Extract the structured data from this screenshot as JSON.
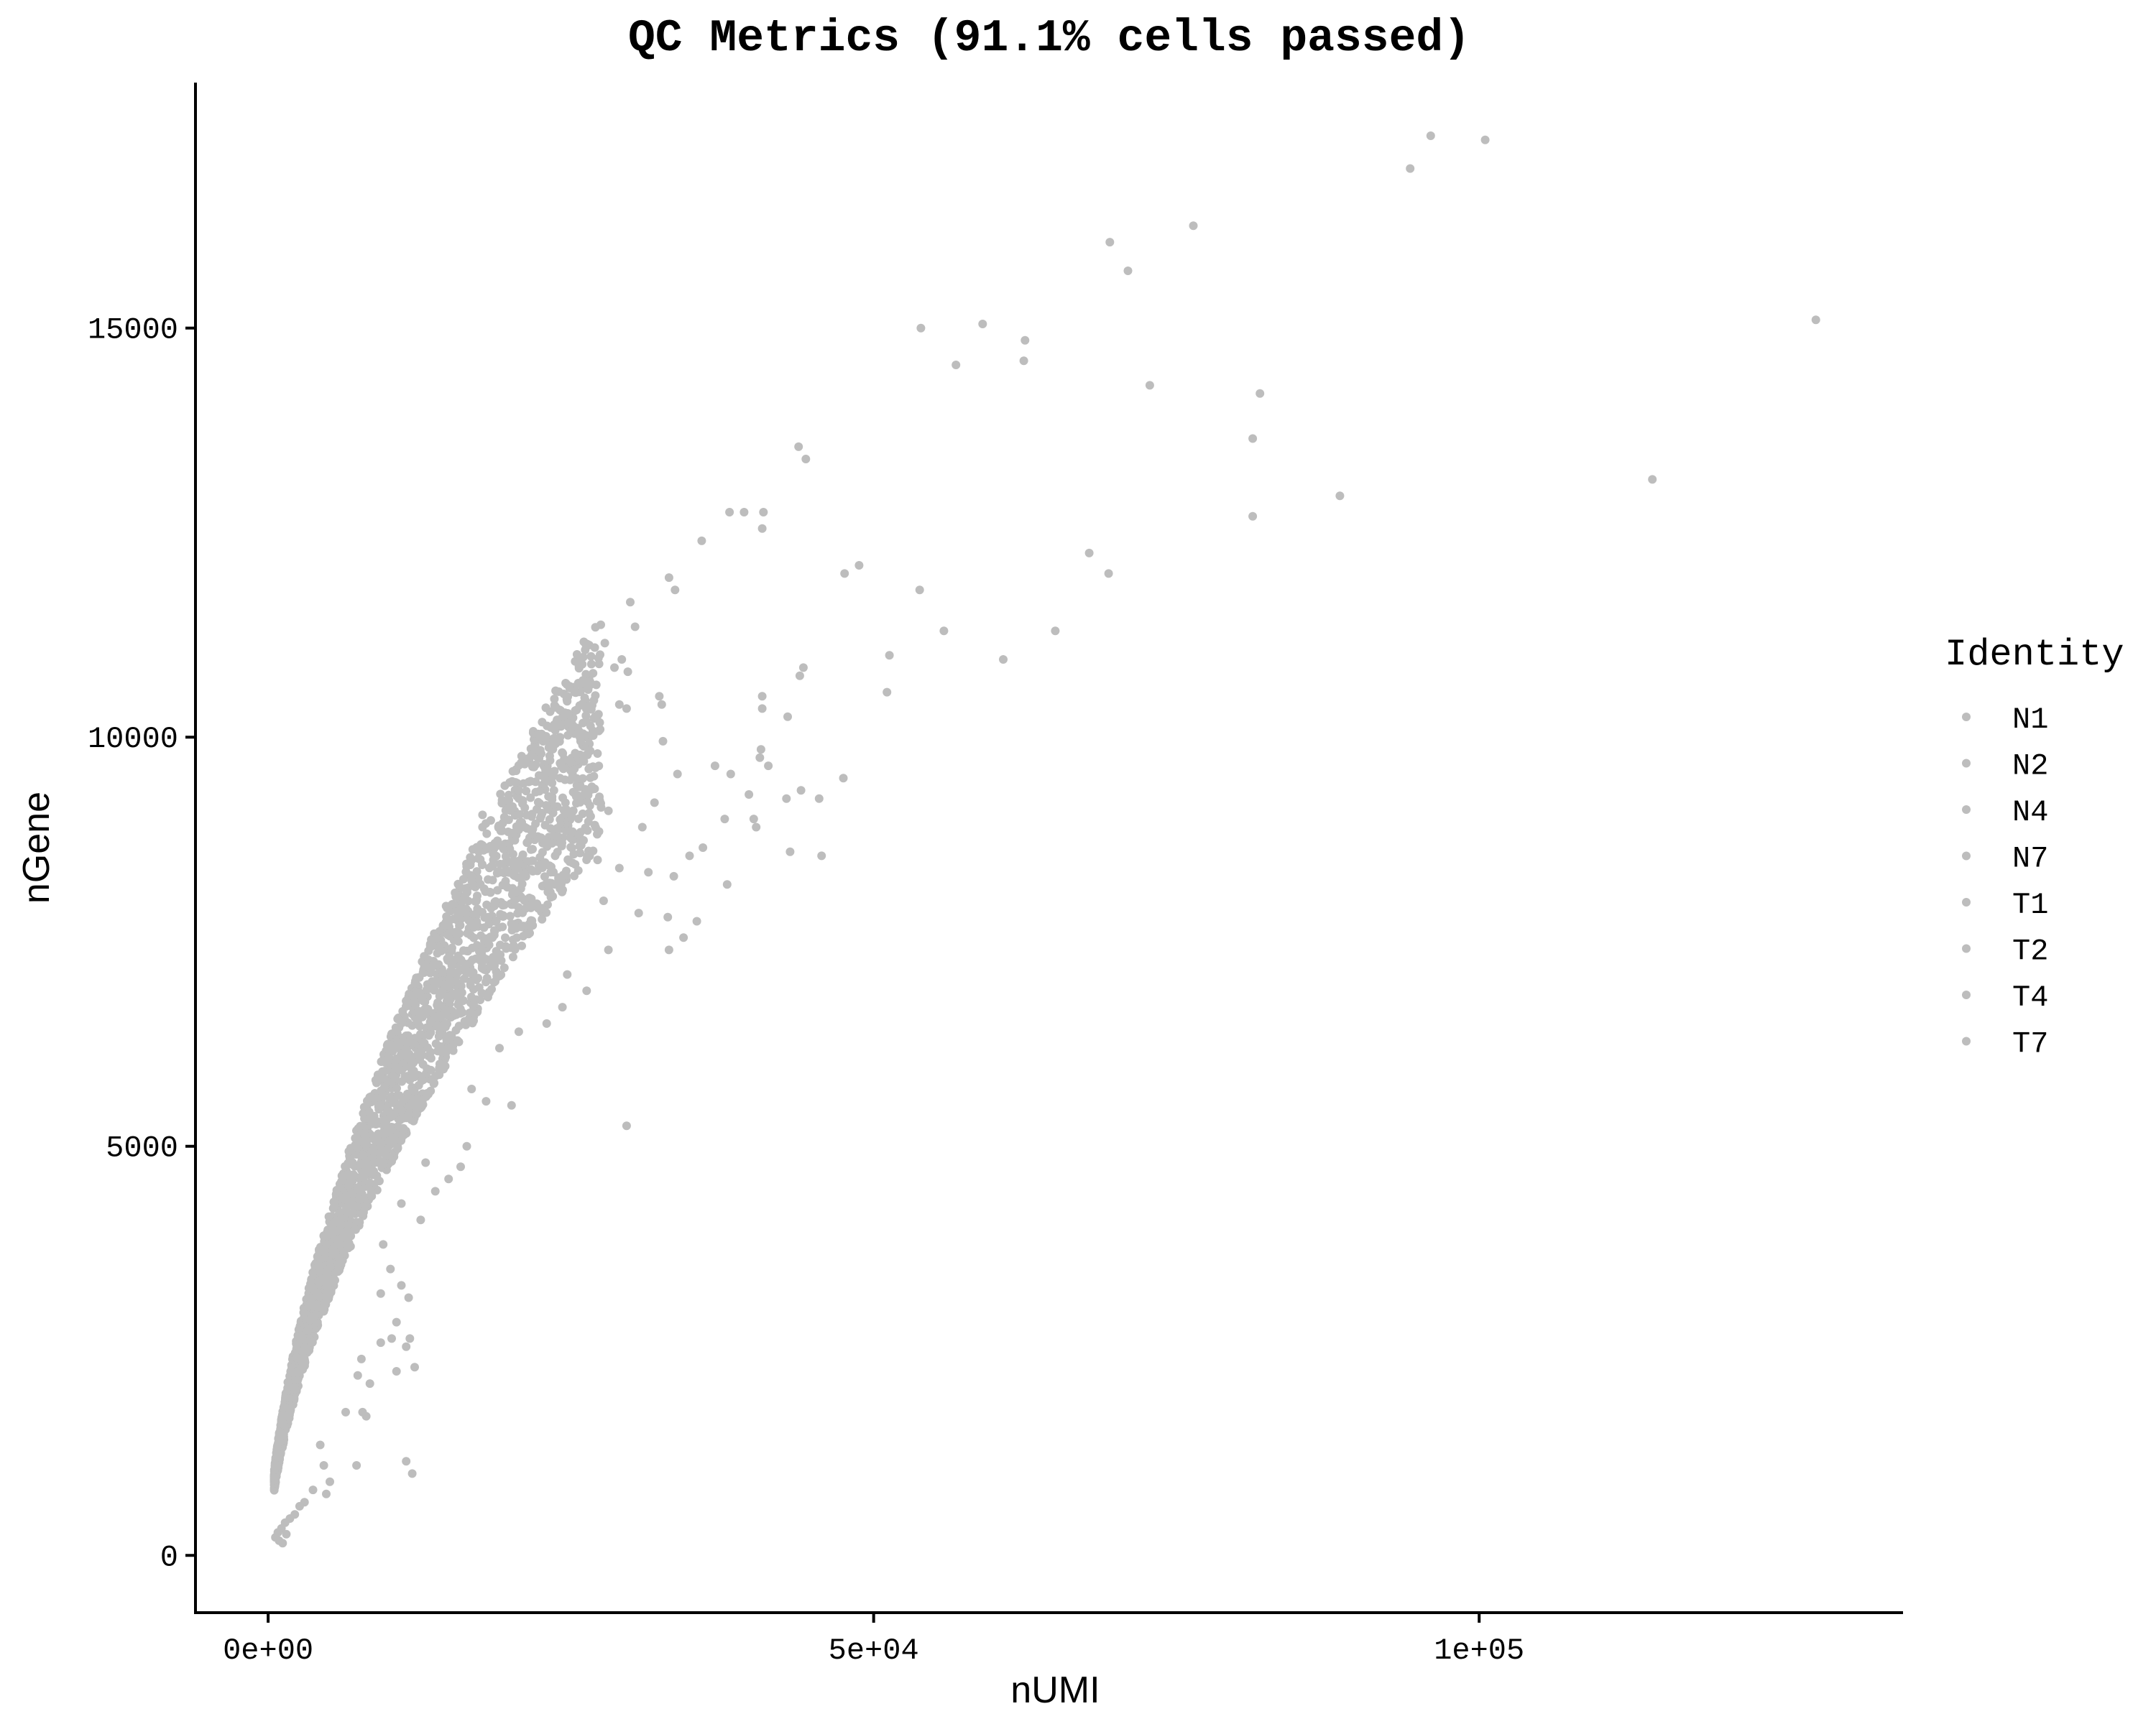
{
  "chart_data": {
    "type": "scatter",
    "title": "QC Metrics (91.1% cells passed)",
    "xlabel": "nUMI",
    "ylabel": "nGene",
    "xlim": [
      -6000,
      135000
    ],
    "ylim": [
      -700,
      18000
    ],
    "x_ticks": [
      {
        "value": 0,
        "label": "0e+00"
      },
      {
        "value": 50000,
        "label": "5e+04"
      },
      {
        "value": 100000,
        "label": "1e+05"
      }
    ],
    "y_ticks": [
      {
        "value": 0,
        "label": "0"
      },
      {
        "value": 5000,
        "label": "5000"
      },
      {
        "value": 10000,
        "label": "10000"
      },
      {
        "value": 15000,
        "label": "15000"
      }
    ],
    "grid": false,
    "legend": {
      "title": "Identity",
      "position": "right",
      "entries": [
        "N1",
        "N2",
        "N4",
        "N7",
        "T1",
        "T2",
        "T4",
        "T7"
      ]
    },
    "point_color": "#bdbdbd",
    "series": [
      {
        "name": "cells",
        "points": [
          [
            96000,
            17350
          ],
          [
            100500,
            17300
          ],
          [
            94300,
            16950
          ],
          [
            69500,
            16050
          ],
          [
            76400,
            16250
          ],
          [
            71000,
            15700
          ],
          [
            59000,
            15050
          ],
          [
            53900,
            15000
          ],
          [
            62500,
            14850
          ],
          [
            62400,
            14600
          ],
          [
            56800,
            14550
          ],
          [
            127800,
            15100
          ],
          [
            72800,
            14300
          ],
          [
            81900,
            14200
          ],
          [
            81300,
            13650
          ],
          [
            43800,
            13550
          ],
          [
            44400,
            13400
          ],
          [
            114300,
            13150
          ],
          [
            88500,
            12950
          ],
          [
            81300,
            12700
          ],
          [
            38100,
            12750
          ],
          [
            39300,
            12750
          ],
          [
            40900,
            12750
          ],
          [
            40800,
            12550
          ],
          [
            35800,
            12400
          ],
          [
            67800,
            12250
          ],
          [
            48800,
            12100
          ],
          [
            47600,
            12000
          ],
          [
            69400,
            12000
          ],
          [
            33100,
            11950
          ],
          [
            33600,
            11800
          ],
          [
            53800,
            11800
          ],
          [
            29900,
            11650
          ],
          [
            30300,
            11350
          ],
          [
            55800,
            11300
          ],
          [
            65000,
            11300
          ],
          [
            27800,
            11150
          ],
          [
            51300,
            11000
          ],
          [
            60700,
            10950
          ],
          [
            29200,
            10950
          ],
          [
            28600,
            10850
          ],
          [
            29700,
            10800
          ],
          [
            44200,
            10850
          ],
          [
            43900,
            10750
          ],
          [
            51100,
            10550
          ],
          [
            24900,
            10600
          ],
          [
            25300,
            10550
          ],
          [
            26900,
            10450
          ],
          [
            29000,
            10400
          ],
          [
            32300,
            10500
          ],
          [
            32500,
            10400
          ],
          [
            40800,
            10500
          ],
          [
            40800,
            10350
          ],
          [
            42900,
            10250
          ],
          [
            27000,
            10250
          ],
          [
            29600,
            10350
          ],
          [
            22600,
            10000
          ],
          [
            24100,
            10000
          ],
          [
            25800,
            9950
          ],
          [
            32600,
            9950
          ],
          [
            40700,
            9850
          ],
          [
            40600,
            9750
          ],
          [
            41300,
            9650
          ],
          [
            36900,
            9650
          ],
          [
            38200,
            9550
          ],
          [
            47500,
            9500
          ],
          [
            24100,
            9500
          ],
          [
            25200,
            9600
          ],
          [
            33800,
            9550
          ],
          [
            20700,
            9350
          ],
          [
            23600,
            9350
          ],
          [
            44000,
            9350
          ],
          [
            42800,
            9250
          ],
          [
            45500,
            9250
          ],
          [
            39700,
            9300
          ],
          [
            31900,
            9200
          ],
          [
            28100,
            9100
          ],
          [
            17700,
            9050
          ],
          [
            17700,
            8900
          ],
          [
            19900,
            8700
          ],
          [
            21200,
            8900
          ],
          [
            30900,
            8900
          ],
          [
            37700,
            9000
          ],
          [
            40100,
            9000
          ],
          [
            40300,
            8900
          ],
          [
            35900,
            8650
          ],
          [
            34800,
            8550
          ],
          [
            43100,
            8600
          ],
          [
            45700,
            8550
          ],
          [
            22700,
            8450
          ],
          [
            23700,
            8550
          ],
          [
            27200,
            8500
          ],
          [
            29000,
            8400
          ],
          [
            31400,
            8350
          ],
          [
            33500,
            8300
          ],
          [
            37900,
            8200
          ],
          [
            17400,
            8600
          ],
          [
            18600,
            8500
          ],
          [
            16800,
            8300
          ],
          [
            15500,
            8050
          ],
          [
            20200,
            8100
          ],
          [
            24100,
            8150
          ],
          [
            27700,
            8000
          ],
          [
            30600,
            7850
          ],
          [
            33000,
            7800
          ],
          [
            35400,
            7750
          ],
          [
            34300,
            7550
          ],
          [
            33100,
            7400
          ],
          [
            28100,
            7400
          ],
          [
            24700,
            7100
          ],
          [
            14200,
            7400
          ],
          [
            12900,
            7200
          ],
          [
            26300,
            6900
          ],
          [
            24300,
            6700
          ],
          [
            23000,
            6500
          ],
          [
            20700,
            6400
          ],
          [
            19100,
            6200
          ],
          [
            29600,
            5250
          ],
          [
            18000,
            5550
          ],
          [
            20100,
            5500
          ],
          [
            16800,
            5700
          ],
          [
            16400,
            5000
          ],
          [
            13000,
            4800
          ],
          [
            15900,
            4750
          ],
          [
            14900,
            4600
          ],
          [
            13800,
            4450
          ],
          [
            11000,
            4300
          ],
          [
            12600,
            4100
          ],
          [
            9500,
            3800
          ],
          [
            10100,
            3500
          ],
          [
            11000,
            3300
          ],
          [
            11600,
            3150
          ],
          [
            9300,
            3200
          ],
          [
            10600,
            2850
          ],
          [
            10200,
            2650
          ],
          [
            11700,
            2650
          ],
          [
            9300,
            2600
          ],
          [
            11400,
            2550
          ],
          [
            12100,
            2300
          ],
          [
            10600,
            2250
          ],
          [
            7700,
            2400
          ],
          [
            7400,
            2200
          ],
          [
            8400,
            2100
          ],
          [
            7800,
            1750
          ],
          [
            8100,
            1700
          ],
          [
            6400,
            1750
          ],
          [
            7300,
            1100
          ],
          [
            11400,
            1150
          ],
          [
            11900,
            1000
          ],
          [
            4300,
            1350
          ],
          [
            4600,
            1100
          ],
          [
            5100,
            900
          ],
          [
            4800,
            750
          ],
          [
            3700,
            800
          ],
          [
            3000,
            650
          ],
          [
            2600,
            600
          ],
          [
            2200,
            500
          ],
          [
            1800,
            450
          ],
          [
            1400,
            400
          ],
          [
            1100,
            330
          ],
          [
            800,
            280
          ],
          [
            600,
            220
          ],
          [
            900,
            180
          ],
          [
            1200,
            150
          ],
          [
            1500,
            260
          ]
        ]
      }
    ]
  }
}
